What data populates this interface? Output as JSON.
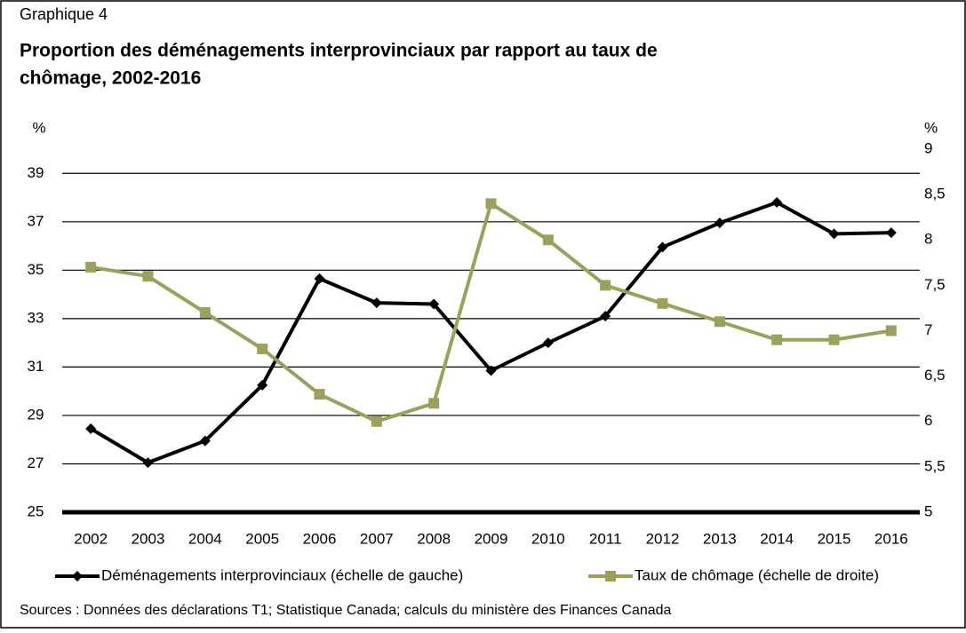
{
  "chart_data": {
    "type": "line",
    "label": "Graphique 4",
    "title": "Proportion des déménagements interprovinciaux par rapport au taux de chômage, 2002-2016",
    "title_lines": [
      "Proportion des déménagements interprovinciaux par rapport au taux de",
      "chômage, 2002-2016"
    ],
    "y_label": "%",
    "y2_label": "%",
    "categories": [
      "2002",
      "2003",
      "2004",
      "2005",
      "2006",
      "2007",
      "2008",
      "2009",
      "2010",
      "2011",
      "2012",
      "2013",
      "2014",
      "2015",
      "2016"
    ],
    "series": [
      {
        "name": "Déménagements interprovinciaux (échelle de gauche)",
        "color": "#000000",
        "marker": "diamond",
        "values": [
          28.45,
          27.05,
          27.95,
          30.25,
          34.65,
          33.65,
          33.6,
          30.85,
          32.0,
          33.1,
          35.95,
          36.95,
          37.8,
          36.5,
          36.55
        ]
      },
      {
        "name": "Taux de chômage (échelle de droite)",
        "color": "#9ba15a",
        "marker": "square",
        "axis": "y2",
        "values": [
          7.7,
          7.6,
          7.2,
          6.8,
          6.3,
          6.0,
          6.2,
          8.4,
          8.0,
          7.5,
          7.3,
          7.1,
          6.9,
          6.9,
          7.0
        ]
      }
    ],
    "ylim": [
      25,
      40
    ],
    "yticks": [
      25,
      27,
      29,
      31,
      33,
      35,
      37,
      39
    ],
    "y2lim": [
      5,
      9
    ],
    "y2ticks": [
      5,
      {
        "value": 5.5,
        "label": "5,5"
      },
      6,
      {
        "value": 6.5,
        "label": "6,5"
      },
      7,
      {
        "value": 7.5,
        "label": "7,5"
      },
      8,
      {
        "value": 8.5,
        "label": "8,5"
      },
      9
    ],
    "grid": true,
    "legend": "bottom",
    "source": "Sources : Données des déclarations T1; Statistique Canada; calculs du ministère des Finances Canada"
  }
}
